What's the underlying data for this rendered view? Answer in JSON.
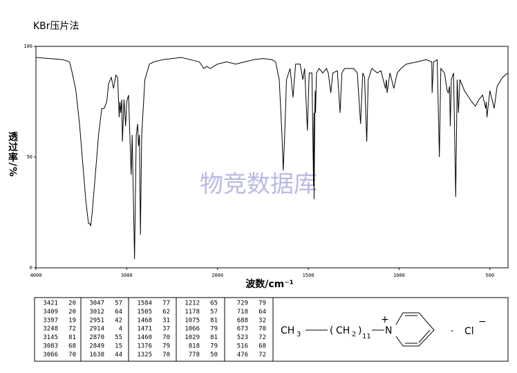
{
  "chart_data": {
    "type": "line",
    "title": "KBr压片法",
    "xlabel": "波数/cm⁻¹",
    "ylabel": "透过率/%",
    "xlim": [
      4000,
      400
    ],
    "xticks": [
      4000,
      3000,
      2000,
      1500,
      1000,
      500
    ],
    "ylim": [
      0,
      100
    ],
    "yticks": [
      0,
      50,
      100
    ],
    "grid": false,
    "series": [
      {
        "color": "#000000",
        "x": [
          4000,
          3700,
          3630,
          3600,
          3560,
          3520,
          3480,
          3450,
          3421,
          3409,
          3397,
          3380,
          3350,
          3310,
          3275,
          3248,
          3220,
          3200,
          3170,
          3145,
          3120,
          3100,
          3083,
          3075,
          3066,
          3055,
          3047,
          3030,
          3012,
          3000,
          2980,
          2951,
          2940,
          2914,
          2895,
          2880,
          2870,
          2860,
          2849,
          2835,
          2800,
          2750,
          2700,
          2600,
          2500,
          2400,
          2300,
          2200,
          2150,
          2120,
          2080,
          2000,
          1950,
          1900,
          1850,
          1800,
          1750,
          1700,
          1680,
          1660,
          1645,
          1638,
          1630,
          1620,
          1600,
          1584,
          1570,
          1545,
          1530,
          1520,
          1505,
          1495,
          1480,
          1471,
          1469,
          1468,
          1464,
          1462,
          1460,
          1455,
          1440,
          1420,
          1400,
          1390,
          1376,
          1365,
          1340,
          1325,
          1315,
          1300,
          1250,
          1230,
          1212,
          1200,
          1190,
          1178,
          1170,
          1150,
          1120,
          1100,
          1075,
          1070,
          1066,
          1050,
          1029,
          1010,
          990,
          960,
          900,
          850,
          820,
          818,
          810,
          790,
          778,
          770,
          750,
          735,
          729,
          722,
          718,
          712,
          700,
          688,
          680,
          673,
          665,
          640,
          600,
          580,
          560,
          540,
          523,
          520,
          516,
          500,
          476,
          460,
          430,
          400
        ],
        "values": [
          95,
          94,
          93,
          88,
          80,
          65,
          45,
          30,
          20,
          20,
          19,
          25,
          40,
          60,
          72,
          72,
          75,
          83,
          86,
          81,
          87,
          86,
          68,
          75,
          70,
          76,
          57,
          76,
          64,
          75,
          78,
          42,
          60,
          4,
          60,
          65,
          55,
          60,
          15,
          60,
          85,
          92,
          93,
          94,
          94.5,
          95,
          94,
          93,
          90,
          91,
          90,
          92,
          93,
          92,
          93,
          94,
          94.5,
          94,
          93,
          85,
          60,
          44,
          60,
          85,
          90,
          77,
          92,
          92,
          85,
          90,
          62,
          88,
          88,
          37,
          70,
          31,
          70,
          80,
          70,
          88,
          90,
          88,
          90,
          88,
          79,
          88,
          89,
          70,
          88,
          90,
          90,
          88,
          65,
          88,
          86,
          57,
          85,
          90,
          88,
          89,
          81,
          85,
          79,
          88,
          81,
          88,
          90,
          92,
          93,
          94,
          93,
          79,
          93,
          94,
          50,
          90,
          88,
          80,
          79,
          82,
          64,
          85,
          88,
          32,
          85,
          70,
          85,
          80,
          75,
          73,
          76,
          78,
          72,
          75,
          68,
          80,
          72,
          82,
          86,
          88
        ]
      }
    ]
  },
  "watermark": "物竞数据库",
  "peaks": [
    [
      [
        3421,
        20
      ],
      [
        3409,
        20
      ],
      [
        3397,
        19
      ],
      [
        3248,
        72
      ],
      [
        3145,
        81
      ],
      [
        3083,
        68
      ],
      [
        3066,
        70
      ]
    ],
    [
      [
        3047,
        57
      ],
      [
        3012,
        64
      ],
      [
        2951,
        42
      ],
      [
        2914,
        4
      ],
      [
        2870,
        55
      ],
      [
        2849,
        15
      ],
      [
        1638,
        44
      ]
    ],
    [
      [
        1584,
        77
      ],
      [
        1505,
        62
      ],
      [
        1468,
        31
      ],
      [
        1471,
        37
      ],
      [
        1460,
        70
      ],
      [
        1376,
        79
      ],
      [
        1325,
        70
      ]
    ],
    [
      [
        1212,
        65
      ],
      [
        1178,
        57
      ],
      [
        1075,
        81
      ],
      [
        1066,
        79
      ],
      [
        1029,
        81
      ],
      [
        818,
        79
      ],
      [
        778,
        50
      ]
    ],
    [
      [
        729,
        79
      ],
      [
        718,
        64
      ],
      [
        688,
        32
      ],
      [
        673,
        70
      ],
      [
        523,
        72
      ],
      [
        516,
        68
      ],
      [
        476,
        72
      ]
    ]
  ],
  "structure": {
    "methyl": "CH",
    "methyl_sub": "3",
    "open": "(",
    "methylene": "CH",
    "methylene_sub": "2",
    "close": ")",
    "repeat": "11",
    "nitrogen": "N",
    "charge": "+",
    "dot": "·",
    "anion": "Cl",
    "anion_charge": "−"
  }
}
